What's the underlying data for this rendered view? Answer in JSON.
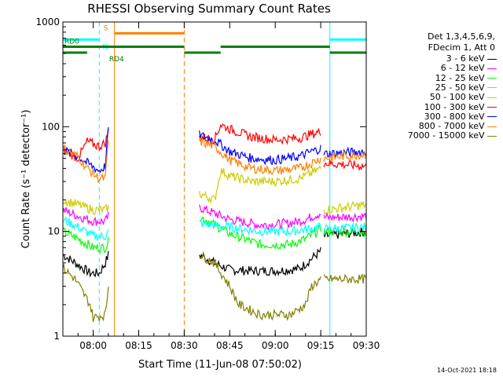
{
  "chart_data": {
    "type": "line",
    "title": "RHESSI Observing Summary Count Rates",
    "xlabel": "Start Time (11-Jun-08 07:50:02)",
    "ylabel": "Count Rate (s⁻¹ detector⁻¹)",
    "yscale": "log",
    "ylim": [
      1,
      1000
    ],
    "xlim_minutes": [
      0,
      100
    ],
    "x_ticks": [
      {
        "label": "08:00",
        "t": 10
      },
      {
        "label": "08:15",
        "t": 25
      },
      {
        "label": "08:30",
        "t": 40
      },
      {
        "label": "08:45",
        "t": 55
      },
      {
        "label": "09:00",
        "t": 70
      },
      {
        "label": "09:15",
        "t": 85
      },
      {
        "label": "09:30",
        "t": 100
      }
    ],
    "y_ticks": [
      {
        "label": "1",
        "v": 1
      },
      {
        "label": "10",
        "v": 10
      },
      {
        "label": "100",
        "v": 100
      },
      {
        "label": "1000",
        "v": 1000
      }
    ],
    "legend": {
      "header": [
        "Det 1,3,4,5,6,9,",
        "FDecim 1, Att 0"
      ],
      "placement": "right"
    },
    "series": [
      {
        "name": "3 - 6 keV",
        "color": "#000000",
        "segments": [
          [
            [
              0,
              6
            ],
            [
              5,
              4.8
            ],
            [
              9,
              4
            ],
            [
              12,
              4
            ],
            [
              14,
              5
            ],
            [
              15,
              6
            ]
          ],
          [
            [
              45,
              6
            ],
            [
              50,
              5
            ],
            [
              55,
              4.3
            ],
            [
              62,
              4.2
            ],
            [
              70,
              4.2
            ],
            [
              78,
              4.4
            ],
            [
              82,
              5.5
            ],
            [
              85,
              6.5
            ]
          ],
          [
            [
              86,
              9
            ],
            [
              100,
              10
            ]
          ]
        ]
      },
      {
        "name": "6 - 12 keV",
        "color": "#ff00ff",
        "segments": [
          [
            [
              0,
              16
            ],
            [
              5,
              14
            ],
            [
              10,
              12.5
            ],
            [
              14,
              12.5
            ],
            [
              15,
              14
            ]
          ],
          [
            [
              45,
              17
            ],
            [
              55,
              13
            ],
            [
              65,
              11.5
            ],
            [
              75,
              12
            ],
            [
              80,
              13
            ],
            [
              85,
              15
            ]
          ],
          [
            [
              86,
              13.5
            ],
            [
              100,
              14
            ]
          ]
        ]
      },
      {
        "name": "12 - 25 keV",
        "color": "#00ff00",
        "segments": [
          [
            [
              0,
              10
            ],
            [
              5,
              8.5
            ],
            [
              10,
              7
            ],
            [
              14,
              7
            ],
            [
              15,
              8
            ]
          ],
          [
            [
              45,
              14
            ],
            [
              55,
              9.5
            ],
            [
              65,
              7.5
            ],
            [
              75,
              7.5
            ],
            [
              80,
              8.5
            ],
            [
              85,
              10.5
            ]
          ],
          [
            [
              86,
              10
            ],
            [
              100,
              10
            ]
          ]
        ]
      },
      {
        "name": "25 - 50 keV",
        "color": "#00ffff",
        "segments": [
          [
            [
              0,
              13
            ],
            [
              5,
              11
            ],
            [
              10,
              9
            ],
            [
              14,
              9
            ],
            [
              15,
              10
            ]
          ],
          [
            [
              45,
              12
            ],
            [
              55,
              11
            ],
            [
              65,
              10
            ],
            [
              75,
              10
            ],
            [
              80,
              10.5
            ],
            [
              85,
              11
            ]
          ],
          [
            [
              86,
              10.5
            ],
            [
              100,
              11
            ]
          ]
        ]
      },
      {
        "name": "50 - 100 keV",
        "color": "#cccc00",
        "segments": [
          [
            [
              0,
              20
            ],
            [
              5,
              18
            ],
            [
              10,
              16
            ],
            [
              14,
              16
            ],
            [
              15,
              17
            ]
          ],
          [
            [
              45,
              23
            ],
            [
              50,
              20
            ],
            [
              52,
              38
            ],
            [
              55,
              34
            ],
            [
              62,
              30
            ],
            [
              70,
              30
            ],
            [
              78,
              32
            ],
            [
              82,
              36
            ],
            [
              85,
              40
            ]
          ],
          [
            [
              86,
              16
            ],
            [
              100,
              18
            ]
          ]
        ]
      },
      {
        "name": "100 - 300 keV",
        "color": "#ff0000",
        "segments": [
          [
            [
              0,
              60
            ],
            [
              5,
              50
            ],
            [
              8,
              72
            ],
            [
              12,
              65
            ],
            [
              14,
              70
            ],
            [
              15,
              90
            ]
          ],
          [
            [
              45,
              80
            ],
            [
              50,
              75
            ],
            [
              52,
              105
            ],
            [
              55,
              95
            ],
            [
              62,
              80
            ],
            [
              70,
              75
            ],
            [
              78,
              78
            ],
            [
              82,
              85
            ],
            [
              85,
              90
            ]
          ],
          [
            [
              86,
              45
            ],
            [
              100,
              42
            ]
          ]
        ]
      },
      {
        "name": "300 - 800 keV",
        "color": "#0000ff",
        "segments": [
          [
            [
              0,
              60
            ],
            [
              5,
              52
            ],
            [
              8,
              45
            ],
            [
              12,
              38
            ],
            [
              14,
              42
            ],
            [
              15,
              100
            ]
          ],
          [
            [
              45,
              83
            ],
            [
              50,
              75
            ],
            [
              55,
              58
            ],
            [
              62,
              50
            ],
            [
              70,
              48
            ],
            [
              78,
              52
            ],
            [
              82,
              58
            ],
            [
              85,
              62
            ]
          ],
          [
            [
              86,
              55
            ],
            [
              100,
              58
            ]
          ]
        ]
      },
      {
        "name": "800 - 7000 keV",
        "color": "#ff8000",
        "segments": [
          [
            [
              0,
              62
            ],
            [
              5,
              52
            ],
            [
              8,
              40
            ],
            [
              12,
              32
            ],
            [
              14,
              32
            ],
            [
              15,
              75
            ]
          ],
          [
            [
              45,
              72
            ],
            [
              50,
              65
            ],
            [
              55,
              48
            ],
            [
              62,
              40
            ],
            [
              70,
              38
            ],
            [
              78,
              40
            ],
            [
              82,
              45
            ],
            [
              85,
              50
            ]
          ],
          [
            [
              86,
              50
            ],
            [
              100,
              55
            ]
          ]
        ]
      },
      {
        "name": "7000 - 15000 keV",
        "color": "#808000",
        "segments": [
          [
            [
              0,
              4.5
            ],
            [
              4,
              3.5
            ],
            [
              7,
              2.5
            ],
            [
              9,
              2
            ],
            [
              10,
              1.5
            ],
            [
              14,
              1.6
            ],
            [
              15,
              3
            ]
          ],
          [
            [
              45,
              6
            ],
            [
              50,
              5
            ],
            [
              55,
              3
            ],
            [
              58,
              2
            ],
            [
              65,
              1.6
            ],
            [
              75,
              1.6
            ],
            [
              80,
              2
            ],
            [
              82,
              3
            ],
            [
              85,
              3.5
            ]
          ],
          [
            [
              86,
              3.5
            ],
            [
              100,
              3.5
            ]
          ]
        ]
      }
    ],
    "flags": [
      {
        "label": "S",
        "color": "#ff8000",
        "segments": [
          [
            17,
            40
          ]
        ],
        "level": 780
      },
      {
        "label": "N",
        "color": "#00ffff",
        "segments": [
          [
            0,
            12
          ],
          [
            88,
            100
          ]
        ],
        "level": 680
      },
      {
        "label": "RD0",
        "color": "#008000",
        "segments": [
          [
            0,
            40
          ],
          [
            52,
            88
          ]
        ],
        "level": 580
      },
      {
        "label": "RD4",
        "color": "#008000",
        "segments": [
          [
            0,
            8
          ],
          [
            40,
            52
          ],
          [
            88,
            100
          ]
        ],
        "level": 510
      }
    ],
    "markers": [
      {
        "t": 0,
        "color": "#00ffff",
        "style": "solid"
      },
      {
        "t": 12,
        "color": "#00ffff",
        "style": "dashed"
      },
      {
        "t": 17,
        "color": "#ff8000",
        "style": "solid"
      },
      {
        "t": 40,
        "color": "#ff8000",
        "style": "dashed"
      },
      {
        "t": 88,
        "color": "#00ffff",
        "style": "solid"
      },
      {
        "t": 100,
        "color": "#00ffff",
        "style": "dashed"
      }
    ]
  },
  "footer": {
    "stamp": "14-Oct-2021 18:18"
  }
}
